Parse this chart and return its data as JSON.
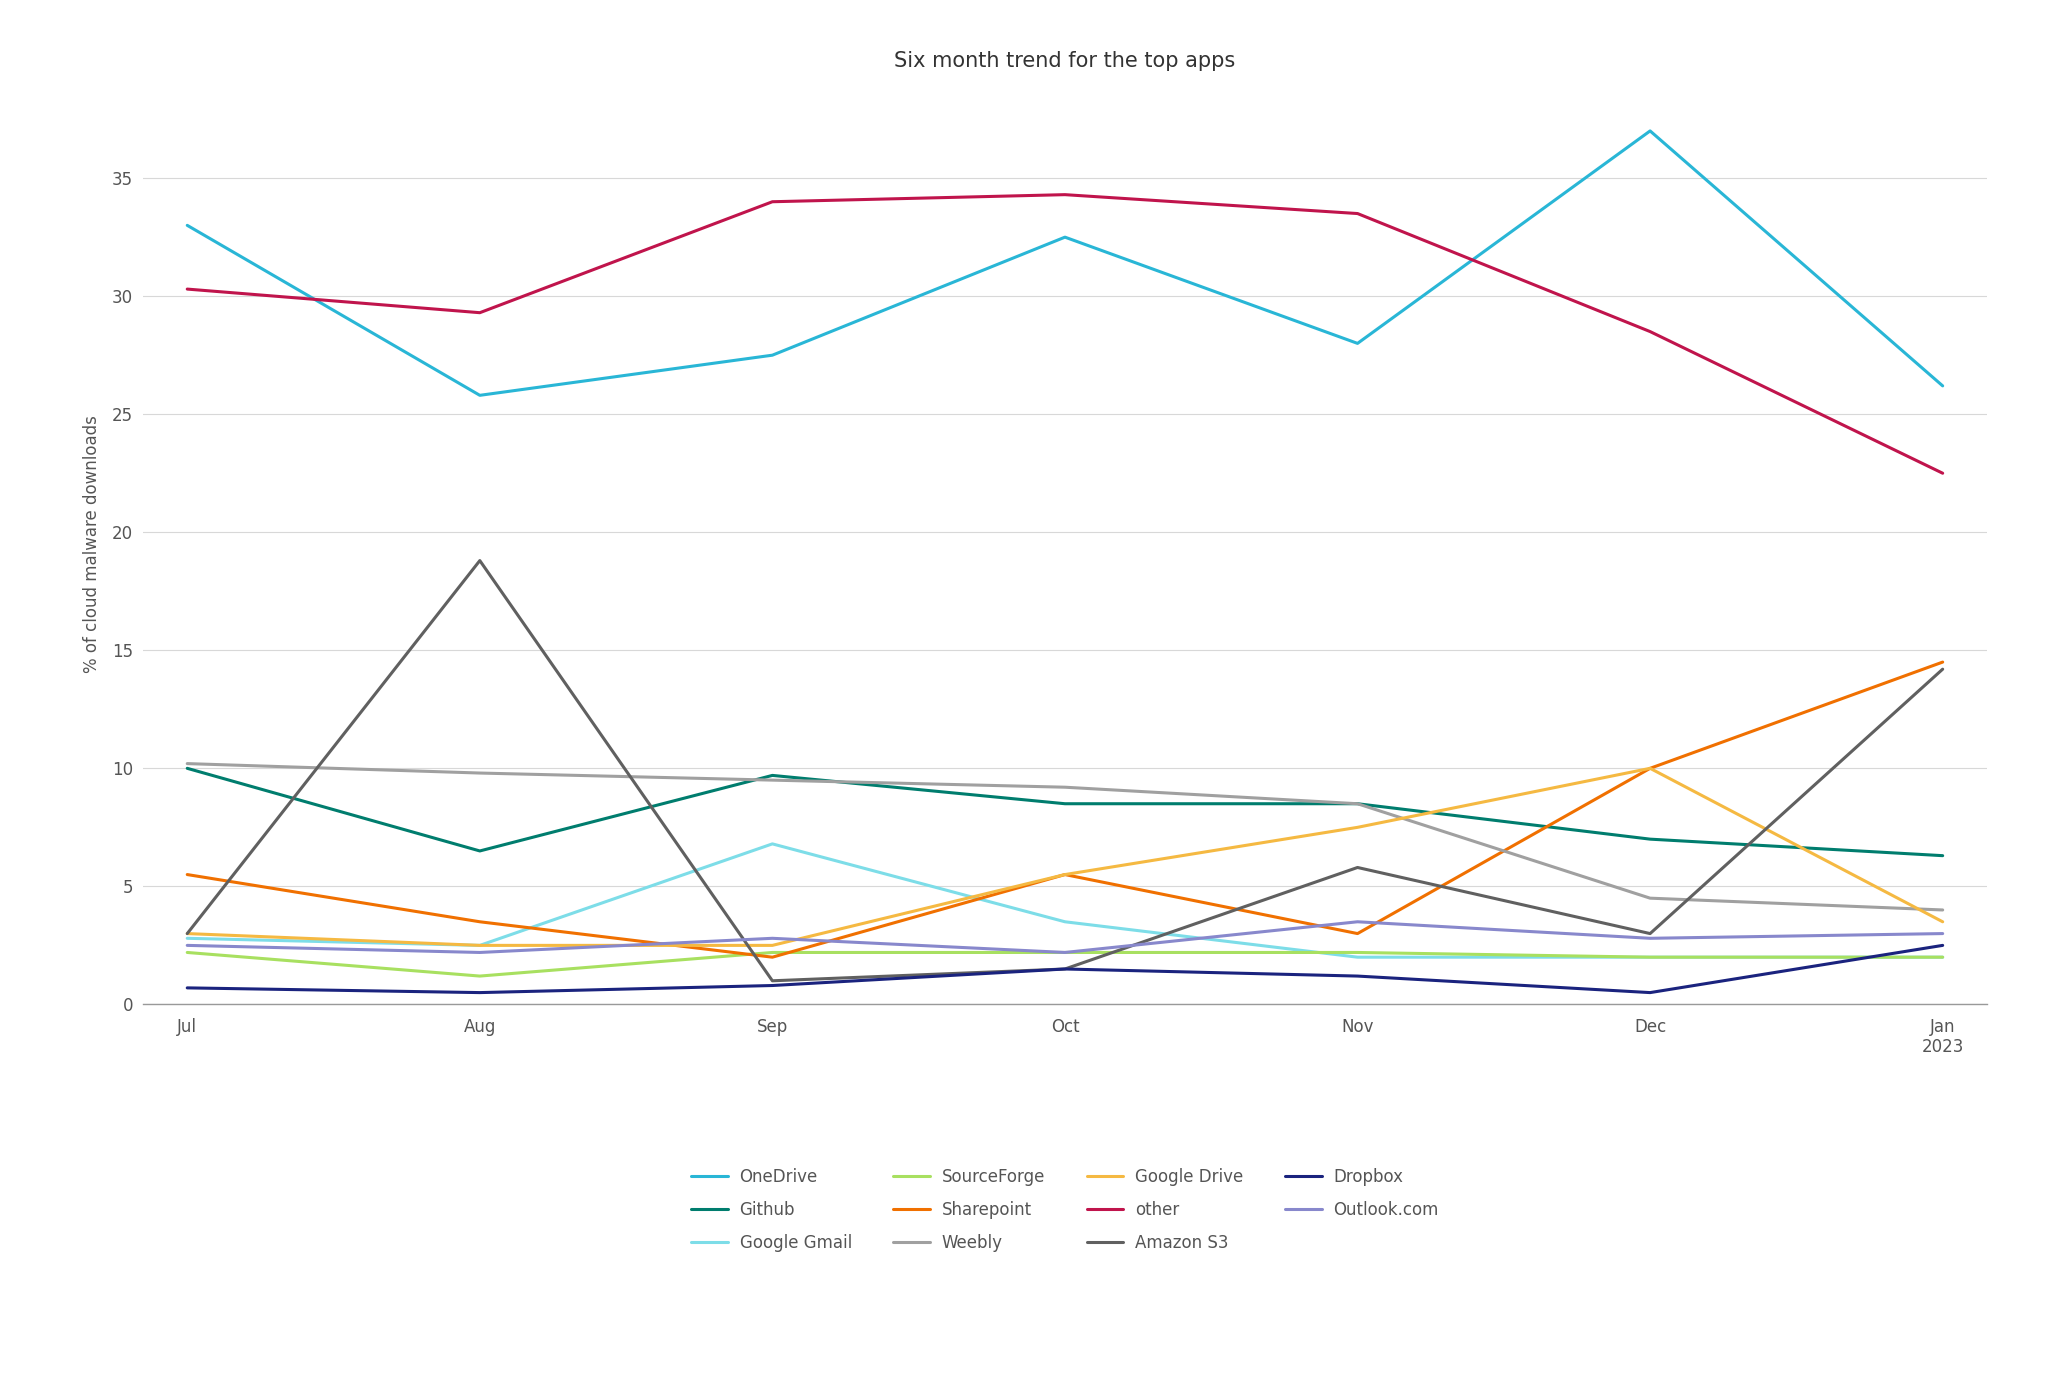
{
  "title": "Six month trend for the top apps",
  "ylabel": "% of cloud malware downloads",
  "x_labels": [
    "Jul",
    "Aug",
    "Sep",
    "Oct",
    "Nov",
    "Dec",
    "Jan\n2023"
  ],
  "x_values": [
    0,
    1,
    2,
    3,
    4,
    5,
    6
  ],
  "series": [
    {
      "name": "OneDrive",
      "color": "#29b6d6",
      "data": [
        33.0,
        25.8,
        27.5,
        32.5,
        28.0,
        37.0,
        26.2
      ]
    },
    {
      "name": "Github",
      "color": "#007d6e",
      "data": [
        10.0,
        6.5,
        9.7,
        8.5,
        8.5,
        7.0,
        6.3
      ]
    },
    {
      "name": "Google Gmail",
      "color": "#7ddde8",
      "data": [
        2.8,
        2.5,
        6.8,
        3.5,
        2.0,
        2.0,
        2.0
      ]
    },
    {
      "name": "SourceForge",
      "color": "#a8e060",
      "data": [
        2.2,
        1.2,
        2.2,
        2.2,
        2.2,
        2.0,
        2.0
      ]
    },
    {
      "name": "Sharepoint",
      "color": "#f07000",
      "data": [
        5.5,
        3.5,
        2.0,
        5.5,
        3.0,
        10.0,
        14.5
      ]
    },
    {
      "name": "Weebly",
      "color": "#a0a0a0",
      "data": [
        10.2,
        9.8,
        9.5,
        9.2,
        8.5,
        4.5,
        4.0
      ]
    },
    {
      "name": "Google Drive",
      "color": "#f5b942",
      "data": [
        3.0,
        2.5,
        2.5,
        5.5,
        7.5,
        10.0,
        3.5
      ]
    },
    {
      "name": "other",
      "color": "#c0144c",
      "data": [
        30.3,
        29.3,
        34.0,
        34.3,
        33.5,
        28.5,
        22.5
      ]
    },
    {
      "name": "Amazon S3",
      "color": "#606060",
      "data": [
        3.0,
        18.8,
        1.0,
        1.5,
        5.8,
        3.0,
        14.2
      ]
    },
    {
      "name": "Dropbox",
      "color": "#1a237e",
      "data": [
        0.7,
        0.5,
        0.8,
        1.5,
        1.2,
        0.5,
        2.5
      ]
    },
    {
      "name": "Outlook.com",
      "color": "#8888cc",
      "data": [
        2.5,
        2.2,
        2.8,
        2.2,
        3.5,
        2.8,
        3.0
      ]
    }
  ],
  "legend_order": [
    0,
    1,
    2,
    3,
    4,
    5,
    6,
    7,
    8,
    9,
    10
  ],
  "ylim": [
    0,
    39
  ],
  "yticks": [
    0,
    5,
    10,
    15,
    20,
    25,
    30,
    35
  ],
  "background_color": "#ffffff",
  "grid_color": "#d8d8d8",
  "title_fontsize": 15,
  "label_fontsize": 12,
  "tick_fontsize": 12,
  "legend_fontsize": 12,
  "line_width": 2.2,
  "text_color": "#555555"
}
